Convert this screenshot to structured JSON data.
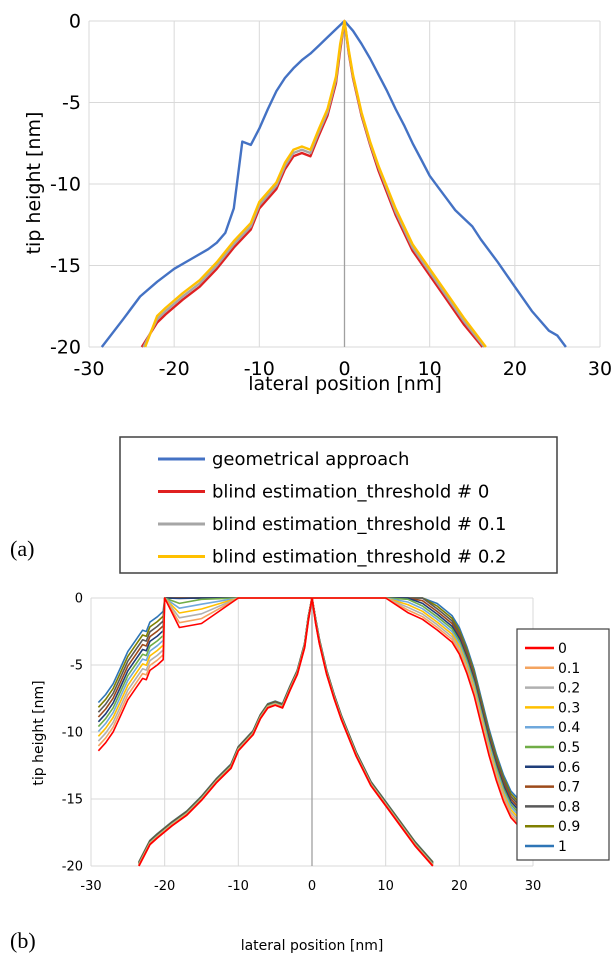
{
  "panels": [
    {
      "label": "(a)"
    },
    {
      "label": "(b)"
    }
  ],
  "chart_data": [
    {
      "type": "line",
      "xlabel": "lateral position [nm]",
      "ylabel": "tip  height [nm]",
      "xlim": [
        -30,
        30
      ],
      "ylim": [
        -20,
        0
      ],
      "xticks": [
        "-30",
        "-20",
        "-10",
        "0",
        "10",
        "20",
        "30"
      ],
      "yticks": [
        "0",
        "-5",
        "-10",
        "-15",
        "-20"
      ],
      "grid": true,
      "legend_position": "bottom",
      "series": [
        {
          "name": "geometrical approach",
          "color": "#4472C4",
          "x": [
            -28.5,
            -26,
            -24,
            -22,
            -20,
            -18,
            -16,
            -15,
            -14,
            -13,
            -12,
            -11,
            -10,
            -9,
            -8,
            -7,
            -6,
            -5,
            -4,
            -3,
            -2,
            -1,
            0,
            1,
            2,
            3,
            4,
            5,
            6,
            7,
            8,
            9,
            10,
            11,
            12,
            13,
            14,
            15,
            16,
            18,
            20,
            22,
            24,
            25,
            26
          ],
          "y": [
            -20,
            -18.3,
            -16.9,
            -16,
            -15.2,
            -14.6,
            -14.0,
            -13.6,
            -13.0,
            -11.5,
            -7.4,
            -7.6,
            -6.6,
            -5.4,
            -4.3,
            -3.5,
            -2.9,
            -2.4,
            -2.0,
            -1.5,
            -1.0,
            -0.5,
            0,
            -0.6,
            -1.4,
            -2.3,
            -3.3,
            -4.3,
            -5.4,
            -6.4,
            -7.5,
            -8.5,
            -9.5,
            -10.2,
            -10.9,
            -11.6,
            -12.1,
            -12.6,
            -13.4,
            -14.8,
            -16.3,
            -17.8,
            -19.0,
            -19.3,
            -20
          ]
        },
        {
          "name": "blind estimation_threshold # 0",
          "color": "#E02020",
          "x": [
            -23.8,
            -22,
            -21,
            -19,
            -17,
            -15,
            -13,
            -11,
            -10,
            -8,
            -7,
            -6,
            -5,
            -4,
            -3,
            -2,
            -1,
            -0.5,
            0,
            0.5,
            1,
            2,
            3,
            4,
            6,
            8,
            10,
            12,
            14,
            16.2
          ],
          "y": [
            -20,
            -18.5,
            -18.0,
            -17.1,
            -16.3,
            -15.2,
            -13.9,
            -12.8,
            -11.5,
            -10.3,
            -9.1,
            -8.3,
            -8.1,
            -8.3,
            -7.0,
            -5.8,
            -3.8,
            -1.8,
            0,
            -2.0,
            -3.5,
            -5.8,
            -7.6,
            -9.2,
            -11.9,
            -14.1,
            -15.6,
            -17.1,
            -18.6,
            -20
          ]
        },
        {
          "name": "blind estimation_threshold # 0.1",
          "color": "#A6A6A6",
          "x": [
            -23.6,
            -22,
            -21,
            -19,
            -17,
            -15,
            -13,
            -11,
            -10,
            -8,
            -7,
            -6,
            -5,
            -4,
            -3,
            -2,
            -1,
            -0.5,
            0,
            0.5,
            1,
            2,
            3,
            4,
            6,
            8,
            10,
            12,
            14,
            16.4
          ],
          "y": [
            -20,
            -18.3,
            -17.8,
            -16.9,
            -16.1,
            -15.0,
            -13.7,
            -12.6,
            -11.3,
            -10.1,
            -8.9,
            -8.1,
            -7.9,
            -8.1,
            -6.8,
            -5.6,
            -3.6,
            -1.6,
            0,
            -1.9,
            -3.4,
            -5.7,
            -7.5,
            -9.0,
            -11.7,
            -13.9,
            -15.4,
            -16.9,
            -18.4,
            -20
          ]
        },
        {
          "name": "blind estimation_threshold # 0.2",
          "color": "#FFC000",
          "x": [
            -23.4,
            -22,
            -21,
            -19,
            -17,
            -15,
            -13,
            -11,
            -10,
            -8,
            -7,
            -6,
            -5,
            -4,
            -3,
            -2,
            -1,
            -0.5,
            0,
            0.5,
            1,
            2,
            3,
            4,
            6,
            8,
            10,
            12,
            14,
            16.6
          ],
          "y": [
            -20,
            -18.1,
            -17.6,
            -16.7,
            -15.9,
            -14.8,
            -13.5,
            -12.4,
            -11.1,
            -9.9,
            -8.7,
            -7.9,
            -7.7,
            -7.9,
            -6.6,
            -5.4,
            -3.4,
            -1.4,
            0,
            -1.8,
            -3.3,
            -5.6,
            -7.4,
            -8.9,
            -11.5,
            -13.7,
            -15.2,
            -16.7,
            -18.2,
            -20
          ]
        }
      ]
    },
    {
      "type": "line",
      "xlabel": "lateral position [nm]",
      "ylabel": "tip height [nm]",
      "xlim": [
        -30,
        30
      ],
      "ylim": [
        -20,
        0
      ],
      "xticks": [
        "-30",
        "-20",
        "-10",
        "0",
        "10",
        "20",
        "30"
      ],
      "yticks": [
        "0",
        "-5",
        "-10",
        "-15",
        "-20"
      ],
      "grid": true,
      "legend_position": "right",
      "thresholds": [
        "0",
        "0.1",
        "0.2",
        "0.3",
        "0.4",
        "0.5",
        "0.6",
        "0.7",
        "0.8",
        "0.9",
        "1"
      ],
      "colors": [
        "#FF0000",
        "#F4A460",
        "#B0B0B0",
        "#FFC000",
        "#6FA8DC",
        "#70AD47",
        "#1F3E7A",
        "#9C4A1A",
        "#595959",
        "#7F7F00",
        "#2E75B6"
      ],
      "inner_curve": {
        "x": [
          -23.5,
          -22,
          -21,
          -19,
          -17,
          -15,
          -13,
          -11,
          -10,
          -8,
          -7,
          -6,
          -5,
          -4,
          -3,
          -2,
          -1,
          -0.5,
          0,
          0.5,
          1,
          2,
          3,
          4,
          6,
          8,
          10,
          12,
          14,
          16.4
        ],
        "y": [
          -20,
          -18.4,
          -17.9,
          -17.0,
          -16.2,
          -15.1,
          -13.8,
          -12.7,
          -11.4,
          -10.2,
          -9.0,
          -8.2,
          -8.0,
          -8.2,
          -6.9,
          -5.7,
          -3.7,
          -1.7,
          0,
          -1.9,
          -3.4,
          -5.7,
          -7.5,
          -9.1,
          -11.8,
          -14.0,
          -15.5,
          -17.0,
          -18.5,
          -20
        ]
      },
      "outer_curve": {
        "x": [
          -29,
          -28,
          -27,
          -26,
          -25,
          -24,
          -23,
          -22.5,
          -22,
          -21,
          -20.2,
          -20,
          -18,
          -15,
          -10,
          -5,
          0,
          5,
          10,
          13,
          15,
          17,
          19,
          20,
          21,
          22,
          23,
          24,
          25,
          26,
          27,
          28,
          28.8
        ],
        "y": [
          -9.6,
          -9.0,
          -8.2,
          -7.0,
          -5.8,
          -5.0,
          -4.2,
          -4.3,
          -3.6,
          -3.2,
          -2.8,
          0,
          -0.4,
          -0.1,
          0,
          0,
          0,
          0,
          0,
          -0.1,
          -0.6,
          -1.4,
          -2.3,
          -3.2,
          -4.6,
          -6.3,
          -8.5,
          -10.7,
          -12.6,
          -14.2,
          -15.4,
          -16.0,
          -16.4
        ]
      }
    }
  ]
}
